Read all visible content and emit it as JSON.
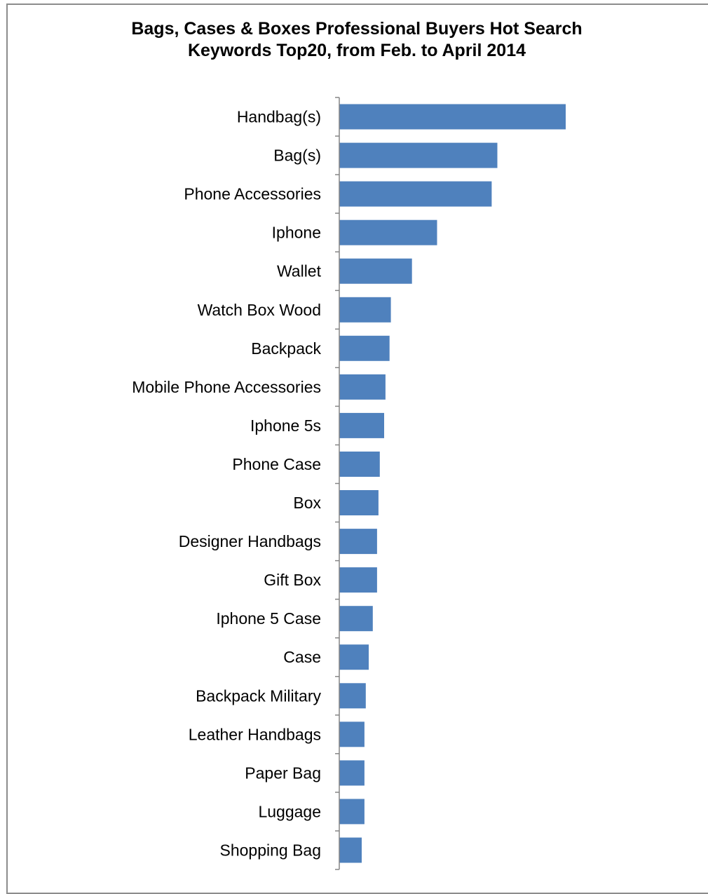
{
  "chart_data": {
    "type": "bar",
    "orientation": "horizontal",
    "title": [
      "Bags, Cases & Boxes Professional Buyers Hot Search",
      "Keywords Top20, from Feb. to April 2014"
    ],
    "categories": [
      "Handbag(s)",
      "Bag(s)",
      "Phone Accessories",
      "Iphone",
      "Wallet",
      "Watch Box Wood",
      "Backpack",
      "Mobile Phone Accessories",
      "Iphone 5s",
      "Phone Case",
      "Box",
      "Designer Handbags",
      "Gift Box",
      "Iphone 5  Case",
      "Case",
      "Backpack Military",
      "Leather Handbags",
      "Paper Bag",
      "Luggage",
      "Shopping Bag"
    ],
    "values": [
      100,
      69.8,
      67.3,
      43.2,
      32.1,
      22.8,
      22.2,
      20.4,
      19.8,
      17.9,
      17.3,
      16.7,
      16.7,
      14.8,
      13.0,
      11.7,
      11.1,
      11.1,
      11.1,
      9.9
    ],
    "xlim": [
      0,
      100
    ],
    "xaxis_visible": false,
    "grid": false,
    "legend": "none",
    "bar_color": "#4f81bd",
    "axis_color": "#868686"
  }
}
